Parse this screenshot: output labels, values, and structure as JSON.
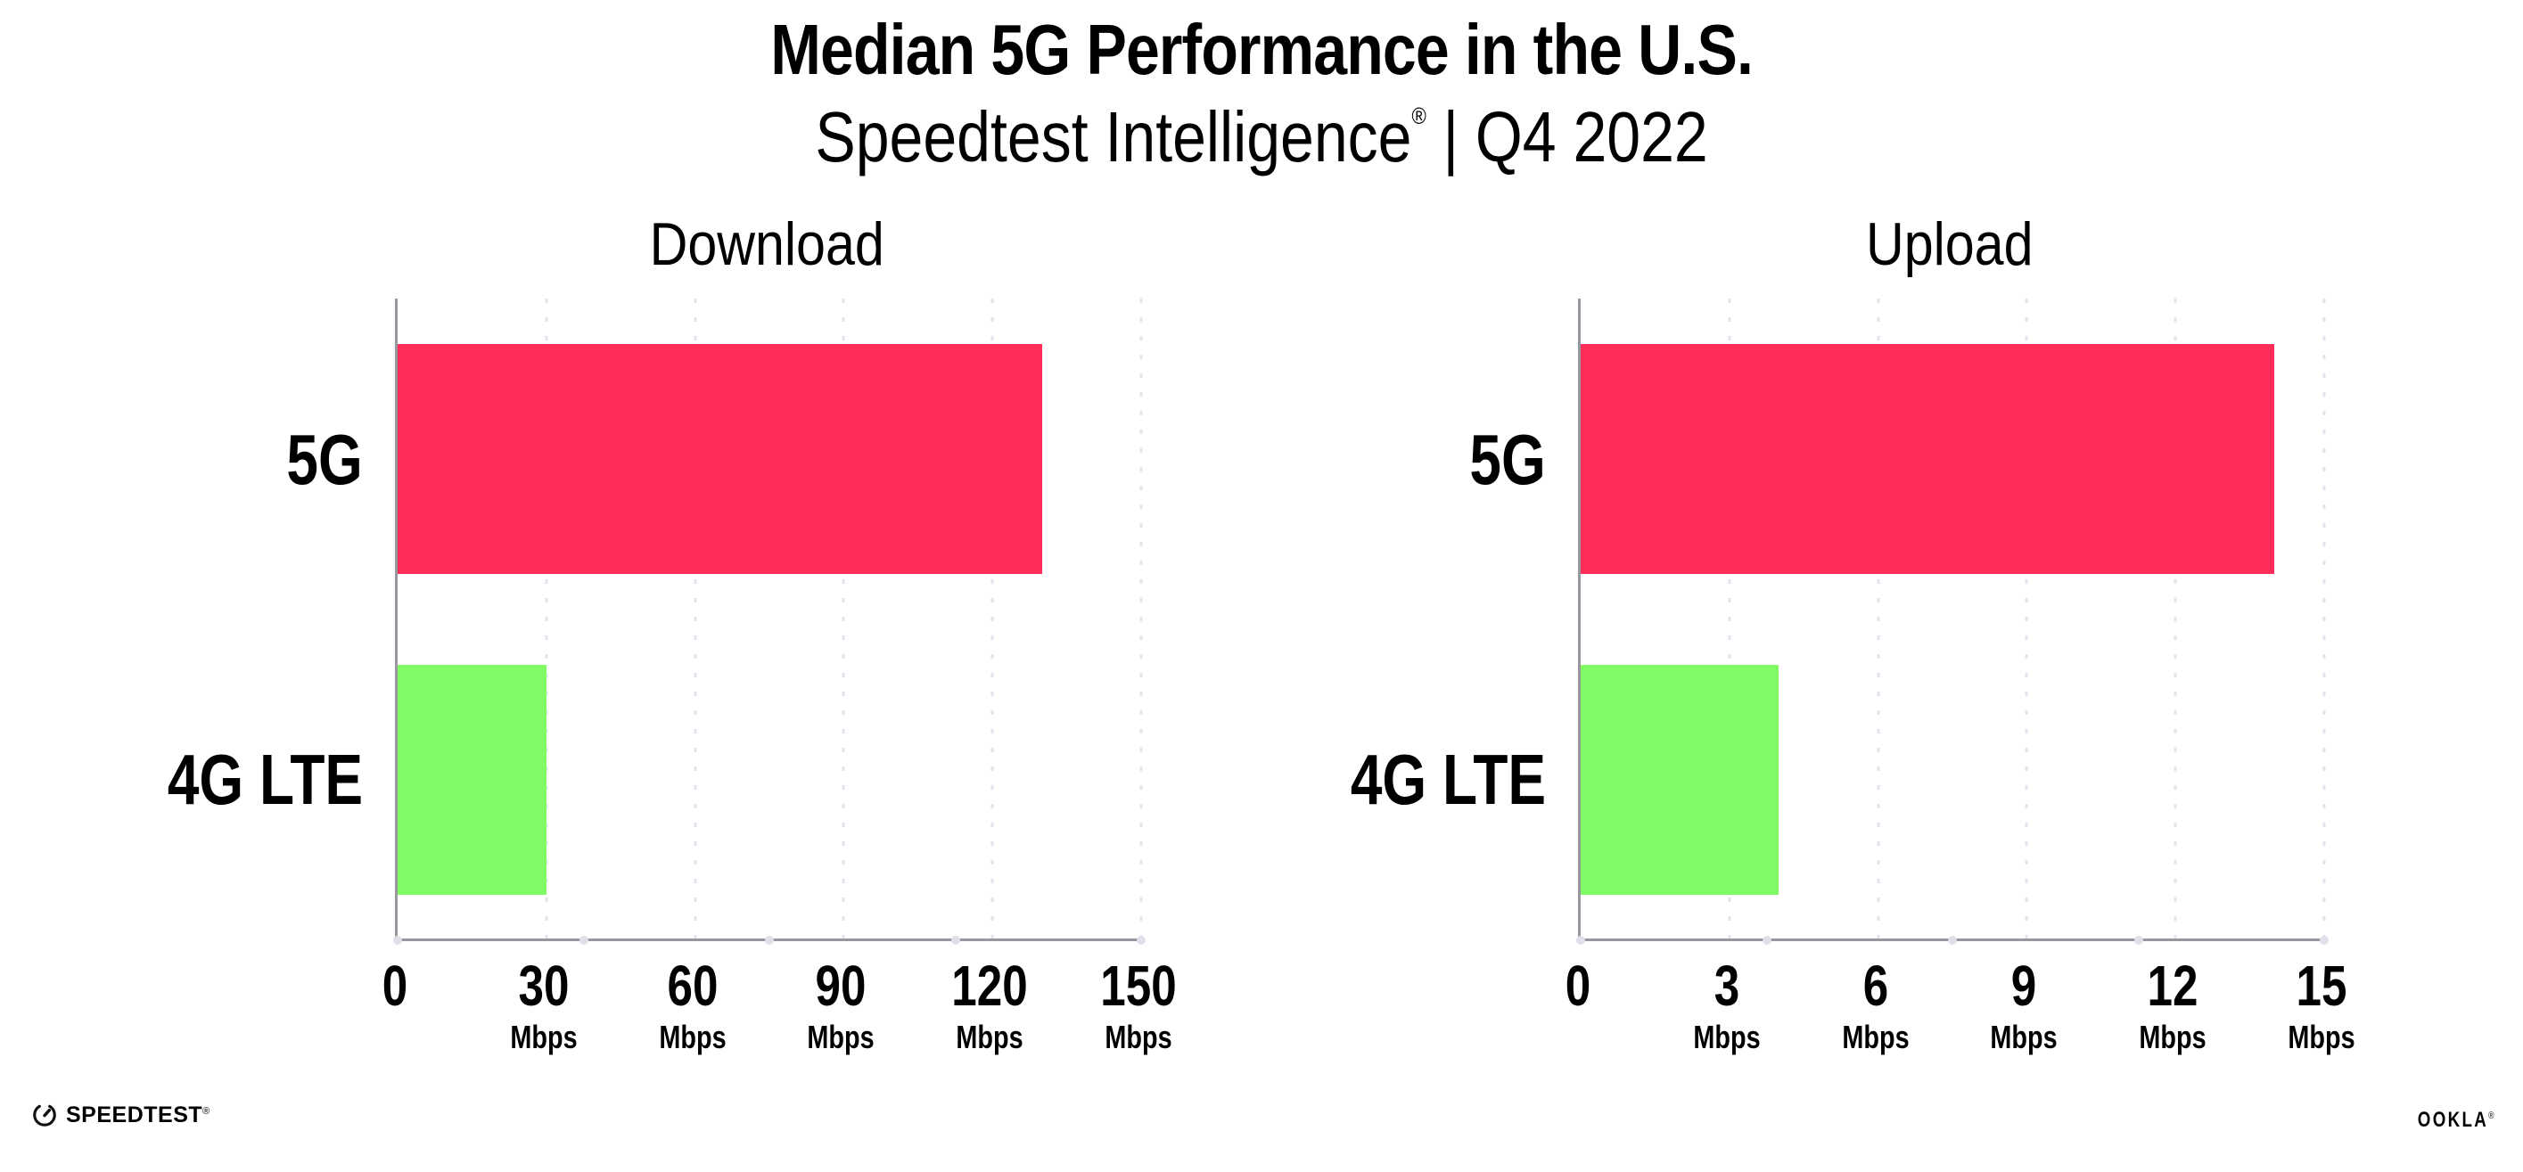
{
  "header": {
    "title": "Median 5G Performance in the U.S.",
    "subtitle_brand": "Speedtest Intelligence",
    "subtitle_reg": "®",
    "subtitle_divider": "|",
    "subtitle_period": "Q4 2022"
  },
  "colors": {
    "bar_5g": "#ff2d59",
    "bar_4g_lte": "#80fb66",
    "axis_line": "#97979d",
    "gridline": "#e3e3ee",
    "text": "#000000"
  },
  "chart_data": [
    {
      "type": "bar",
      "orientation": "horizontal",
      "title": "Download",
      "categories": [
        "5G",
        "4G LTE"
      ],
      "values": [
        130,
        30
      ],
      "unit": "Mbps",
      "xlim": [
        0,
        150
      ],
      "xticks": [
        0,
        30,
        60,
        90,
        120,
        150
      ],
      "xtick_units": [
        "",
        "Mbps",
        "Mbps",
        "Mbps",
        "Mbps",
        "Mbps"
      ],
      "bar_colors": [
        "#ff2d59",
        "#80fb66"
      ],
      "grid": "dotted vertical gridlines at each tick",
      "legend": "none"
    },
    {
      "type": "bar",
      "orientation": "horizontal",
      "title": "Upload",
      "categories": [
        "5G",
        "4G LTE"
      ],
      "values": [
        14,
        4
      ],
      "unit": "Mbps",
      "xlim": [
        0,
        15
      ],
      "xticks": [
        0,
        3,
        6,
        9,
        12,
        15
      ],
      "xtick_units": [
        "",
        "Mbps",
        "Mbps",
        "Mbps",
        "Mbps",
        "Mbps"
      ],
      "bar_colors": [
        "#ff2d59",
        "#80fb66"
      ],
      "grid": "dotted vertical gridlines at each tick",
      "legend": "none"
    }
  ],
  "footer": {
    "speedtest_wordmark": "SPEEDTEST",
    "speedtest_reg": "®",
    "ookla_wordmark": "OOKLA",
    "ookla_reg": "®"
  }
}
